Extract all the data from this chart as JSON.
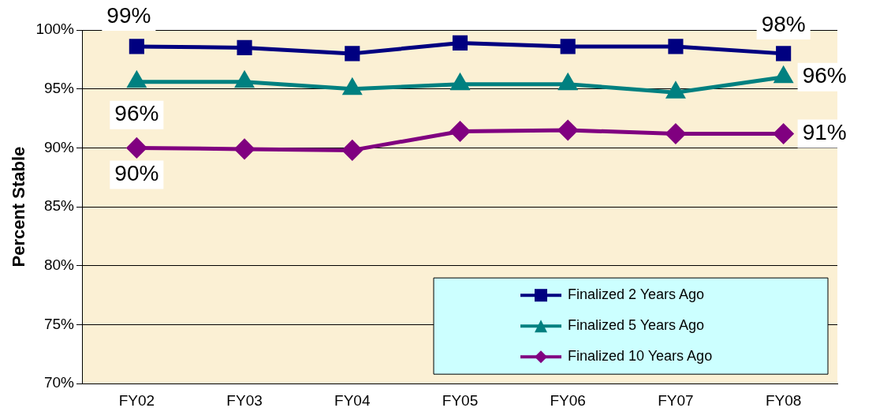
{
  "chart_data": {
    "type": "line",
    "ylabel": "Percent Stable",
    "categories": [
      "FY02",
      "FY03",
      "FY04",
      "FY05",
      "FY06",
      "FY07",
      "FY08"
    ],
    "ylim": [
      70,
      100
    ],
    "yticks": [
      {
        "value": 70,
        "label": "70%"
      },
      {
        "value": 75,
        "label": "75%"
      },
      {
        "value": 80,
        "label": "80%"
      },
      {
        "value": 85,
        "label": "85%"
      },
      {
        "value": 90,
        "label": "90%"
      },
      {
        "value": 95,
        "label": "95%"
      },
      {
        "value": 100,
        "label": "100%"
      }
    ],
    "grid": "y",
    "legend": "bottom right",
    "series": [
      {
        "name": "Finalized 2 Years Ago",
        "color": "#000080",
        "marker": "square",
        "values": [
          98.6,
          98.5,
          98.0,
          98.9,
          98.6,
          98.6,
          98.0
        ],
        "value_labels": [
          "99%",
          null,
          null,
          null,
          null,
          null,
          "98%"
        ]
      },
      {
        "name": "Finalized 5 Years Ago",
        "color": "#008080",
        "marker": "triangle",
        "values": [
          95.6,
          95.6,
          95.0,
          95.4,
          95.4,
          94.7,
          96.0
        ],
        "value_labels": [
          "96%",
          null,
          null,
          null,
          null,
          null,
          "96%"
        ]
      },
      {
        "name": "Finalized 10 Years Ago",
        "color": "#800080",
        "marker": "diamond",
        "values": [
          90.0,
          89.9,
          89.8,
          91.4,
          91.5,
          91.2,
          91.2
        ],
        "value_labels": [
          "90%",
          null,
          null,
          null,
          null,
          null,
          "91%"
        ]
      }
    ]
  }
}
